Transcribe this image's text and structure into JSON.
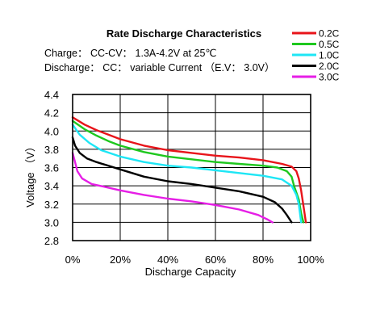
{
  "chart_data": {
    "type": "line",
    "title": "Rate Discharge Characteristics",
    "annotations": [
      "Charge： CC-CV： 1.3A-4.2V at 25℃",
      "Discharge： CC： variable Current （E.V： 3.0V）"
    ],
    "xlabel": "Discharge Capacity",
    "ylabel": "Voltage （V）",
    "xlim": [
      0,
      100
    ],
    "ylim": [
      2.8,
      4.4
    ],
    "x_ticks": [
      "0%",
      "20%",
      "40%",
      "60%",
      "80%",
      "100%"
    ],
    "x_tick_values": [
      0,
      20,
      40,
      60,
      80,
      100
    ],
    "y_ticks": [
      "2.8",
      "3.0",
      "3.2",
      "3.4",
      "3.6",
      "3.8",
      "4.0",
      "4.2",
      "4.4"
    ],
    "y_tick_values": [
      2.8,
      3.0,
      3.2,
      3.4,
      3.6,
      3.8,
      4.0,
      4.2,
      4.4
    ],
    "grid": true,
    "legend_position": "top-right",
    "series": [
      {
        "name": "0.2C",
        "color": "#e8141a",
        "points": [
          [
            0,
            4.15
          ],
          [
            5,
            4.07
          ],
          [
            10,
            4.01
          ],
          [
            15,
            3.96
          ],
          [
            20,
            3.91
          ],
          [
            30,
            3.84
          ],
          [
            40,
            3.79
          ],
          [
            50,
            3.76
          ],
          [
            60,
            3.73
          ],
          [
            70,
            3.71
          ],
          [
            80,
            3.68
          ],
          [
            88,
            3.64
          ],
          [
            92,
            3.61
          ],
          [
            94,
            3.56
          ],
          [
            95,
            3.48
          ],
          [
            96,
            3.35
          ],
          [
            97,
            3.18
          ],
          [
            98,
            3.0
          ]
        ]
      },
      {
        "name": "0.5C",
        "color": "#1ec81e",
        "points": [
          [
            0,
            4.11
          ],
          [
            5,
            4.02
          ],
          [
            10,
            3.95
          ],
          [
            15,
            3.89
          ],
          [
            20,
            3.84
          ],
          [
            30,
            3.77
          ],
          [
            40,
            3.72
          ],
          [
            50,
            3.69
          ],
          [
            60,
            3.66
          ],
          [
            70,
            3.64
          ],
          [
            80,
            3.62
          ],
          [
            86,
            3.6
          ],
          [
            90,
            3.56
          ],
          [
            92,
            3.5
          ],
          [
            93,
            3.4
          ],
          [
            95,
            3.25
          ],
          [
            96,
            3.1
          ],
          [
            97,
            3.0
          ]
        ]
      },
      {
        "name": "1.0C",
        "color": "#1ee6f5",
        "points": [
          [
            0,
            4.07
          ],
          [
            3,
            3.96
          ],
          [
            7,
            3.87
          ],
          [
            12,
            3.79
          ],
          [
            20,
            3.72
          ],
          [
            30,
            3.66
          ],
          [
            40,
            3.62
          ],
          [
            50,
            3.6
          ],
          [
            60,
            3.57
          ],
          [
            70,
            3.54
          ],
          [
            80,
            3.51
          ],
          [
            88,
            3.47
          ],
          [
            92,
            3.4
          ],
          [
            94,
            3.3
          ],
          [
            95,
            3.2
          ],
          [
            96,
            3.0
          ]
        ]
      },
      {
        "name": "2.0C",
        "color": "#000000",
        "points": [
          [
            0,
            3.93
          ],
          [
            1,
            3.84
          ],
          [
            3,
            3.76
          ],
          [
            6,
            3.7
          ],
          [
            10,
            3.66
          ],
          [
            20,
            3.58
          ],
          [
            30,
            3.5
          ],
          [
            40,
            3.45
          ],
          [
            50,
            3.42
          ],
          [
            60,
            3.38
          ],
          [
            70,
            3.34
          ],
          [
            80,
            3.28
          ],
          [
            85,
            3.22
          ],
          [
            88,
            3.15
          ],
          [
            90,
            3.08
          ],
          [
            92,
            3.0
          ]
        ]
      },
      {
        "name": "3.0C",
        "color": "#e61ee6",
        "points": [
          [
            0,
            3.76
          ],
          [
            1,
            3.66
          ],
          [
            2,
            3.56
          ],
          [
            4,
            3.48
          ],
          [
            8,
            3.42
          ],
          [
            15,
            3.38
          ],
          [
            20,
            3.35
          ],
          [
            30,
            3.3
          ],
          [
            40,
            3.26
          ],
          [
            50,
            3.23
          ],
          [
            60,
            3.19
          ],
          [
            70,
            3.14
          ],
          [
            78,
            3.08
          ],
          [
            82,
            3.03
          ],
          [
            84,
            3.0
          ]
        ]
      }
    ]
  }
}
